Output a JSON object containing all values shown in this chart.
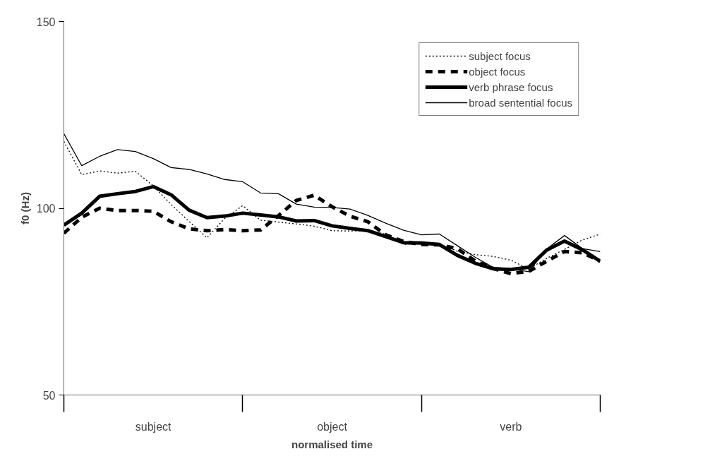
{
  "chart_data": {
    "type": "line",
    "xlabel": "normalised time",
    "ylabel": "f0 (Hz)",
    "categories": [
      null,
      null,
      null,
      null,
      null,
      "subject",
      null,
      null,
      null,
      null,
      null,
      null,
      null,
      null,
      null,
      "object",
      null,
      null,
      null,
      null,
      null,
      null,
      null,
      null,
      null,
      "verb",
      null,
      null,
      null,
      null,
      null
    ],
    "ylim": [
      50,
      150
    ],
    "yticks": [
      50,
      100,
      150
    ],
    "grid": false,
    "legend": "top right",
    "series": [
      {
        "name": "subject focus",
        "color": "#000000",
        "line_style": "dotted",
        "values": [
          117.9,
          109,
          110,
          109.4,
          109.9,
          106,
          101,
          96.5,
          92.1,
          97.3,
          100.7,
          96.8,
          96.3,
          95.8,
          95.2,
          94,
          93.9,
          94,
          93.1,
          90.3,
          90.7,
          90.5,
          88.5,
          87.6,
          87.1,
          86.1,
          83.7,
          86.6,
          89,
          91.5,
          93.1
        ]
      },
      {
        "name": "object focus",
        "color": "#000000",
        "line_style": "dashed",
        "values": [
          93.3,
          97.6,
          100,
          99.4,
          99.4,
          99.2,
          96.4,
          94.5,
          94,
          94.3,
          94,
          94.2,
          98,
          102.1,
          103.5,
          100.4,
          97.9,
          96.4,
          92.9,
          91.1,
          90.3,
          90.2,
          89.2,
          85.9,
          83.9,
          82.5,
          83.1,
          85.8,
          88.4,
          88.1,
          85.8
        ]
      },
      {
        "name": "verb phrase focus",
        "color": "#000000",
        "line_style": "solid",
        "values": [
          95.5,
          98.7,
          103.2,
          103.9,
          104.5,
          105.8,
          103.6,
          99.5,
          97.5,
          97.9,
          98.7,
          98.2,
          97.7,
          96.6,
          96.7,
          95.3,
          94.6,
          94,
          92.4,
          90.8,
          90.7,
          90.3,
          87.4,
          85.3,
          83.8,
          83.6,
          84.2,
          88.8,
          91.2,
          88.9,
          85.8
        ]
      },
      {
        "name": "broad sentential focus",
        "color": "#000000",
        "line_style": "solid",
        "values": [
          120,
          111.4,
          113.9,
          115.7,
          115.2,
          113.3,
          110.9,
          110.4,
          109.2,
          107.7,
          107.1,
          104.1,
          103.9,
          101.1,
          100.3,
          100.2,
          99.8,
          98.1,
          96,
          94.1,
          92.9,
          93.1,
          90,
          86.9,
          84.2,
          83.8,
          83,
          89.1,
          92.7,
          89.2,
          88.4
        ]
      }
    ]
  }
}
